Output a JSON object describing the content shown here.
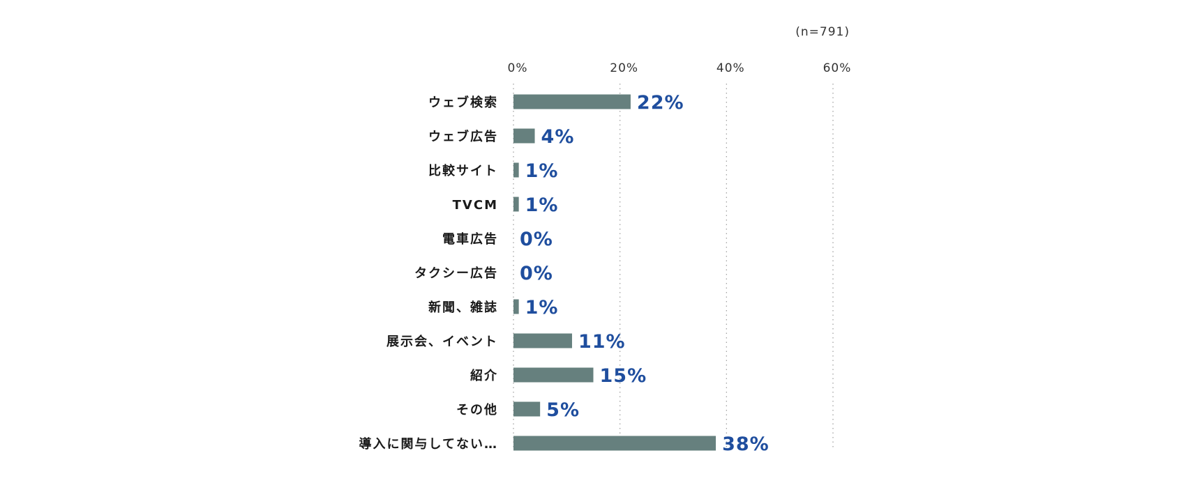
{
  "chart_data": {
    "type": "bar",
    "orientation": "horizontal",
    "note": "(n=791)",
    "categories": [
      "ウェブ検索",
      "ウェブ広告",
      "比較サイト",
      "TVCM",
      "電車広告",
      "タクシー広告",
      "新聞、雑誌",
      "展示会、イベント",
      "紹介",
      "その他",
      "導入に関与してない…"
    ],
    "values": [
      22,
      4,
      1,
      1,
      0,
      0,
      1,
      11,
      15,
      5,
      38
    ],
    "value_labels": [
      "22%",
      "4%",
      "1%",
      "1%",
      "0%",
      "0%",
      "1%",
      "11%",
      "15%",
      "5%",
      "38%"
    ],
    "x_ticks": [
      0,
      20,
      40,
      60
    ],
    "x_tick_labels": [
      "0%",
      "20%",
      "40%",
      "60%"
    ],
    "xlim": [
      0,
      60
    ],
    "grid": "vertical dotted",
    "colors": {
      "bar": "#66807e",
      "value_text": "#1f4e9e",
      "grid": "#9a9a9a"
    }
  }
}
